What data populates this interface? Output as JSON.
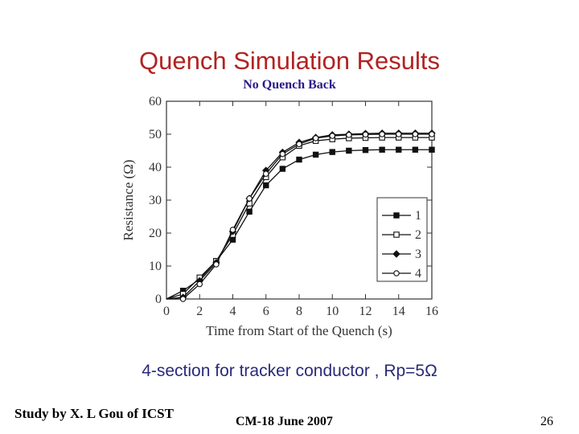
{
  "slide": {
    "title": "Quench Simulation Results",
    "subtitle": "No Quench Back",
    "caption": "4-section for tracker conductor , Rp=5Ω",
    "footer_left": "Study by X. L Gou of ICST",
    "footer_mid": "CM-18 June 2007",
    "page_number": "26"
  },
  "chart_data": {
    "type": "line",
    "xlabel": "Time from Start of the Quench (s)",
    "ylabel": "Resistance  (Ω)",
    "xlim": [
      0,
      16
    ],
    "ylim": [
      0,
      60
    ],
    "xticks": [
      0,
      2,
      4,
      6,
      8,
      10,
      12,
      14,
      16
    ],
    "yticks": [
      0,
      10,
      20,
      30,
      40,
      50,
      60
    ],
    "grid": false,
    "legend_position": "bottom-right",
    "x": [
      0,
      1,
      2,
      3,
      4,
      5,
      6,
      7,
      8,
      9,
      10,
      11,
      12,
      13,
      14,
      15,
      16
    ],
    "series": [
      {
        "name": "1",
        "marker": "filled-square",
        "values": [
          0,
          2.5,
          6,
          11.5,
          18,
          26.5,
          34.5,
          39.5,
          42.3,
          43.8,
          44.6,
          45,
          45.2,
          45.3,
          45.3,
          45.3,
          45.3
        ]
      },
      {
        "name": "2",
        "marker": "open-square",
        "values": [
          0,
          1.5,
          6.5,
          11.5,
          19.5,
          29,
          37,
          43,
          46.5,
          48,
          48.5,
          48.8,
          48.9,
          49,
          49,
          49,
          49
        ]
      },
      {
        "name": "3",
        "marker": "filled-diamond",
        "values": [
          0,
          0.5,
          5.5,
          11,
          20.5,
          30.5,
          39,
          44.5,
          47.5,
          49,
          49.8,
          50,
          50.2,
          50.3,
          50.3,
          50.3,
          50.3
        ]
      },
      {
        "name": "4",
        "marker": "open-circle",
        "values": [
          0,
          0,
          4.5,
          10.5,
          21,
          30.5,
          38,
          44,
          47,
          48.8,
          49.5,
          49.8,
          49.9,
          50,
          50,
          50,
          50
        ]
      }
    ]
  }
}
